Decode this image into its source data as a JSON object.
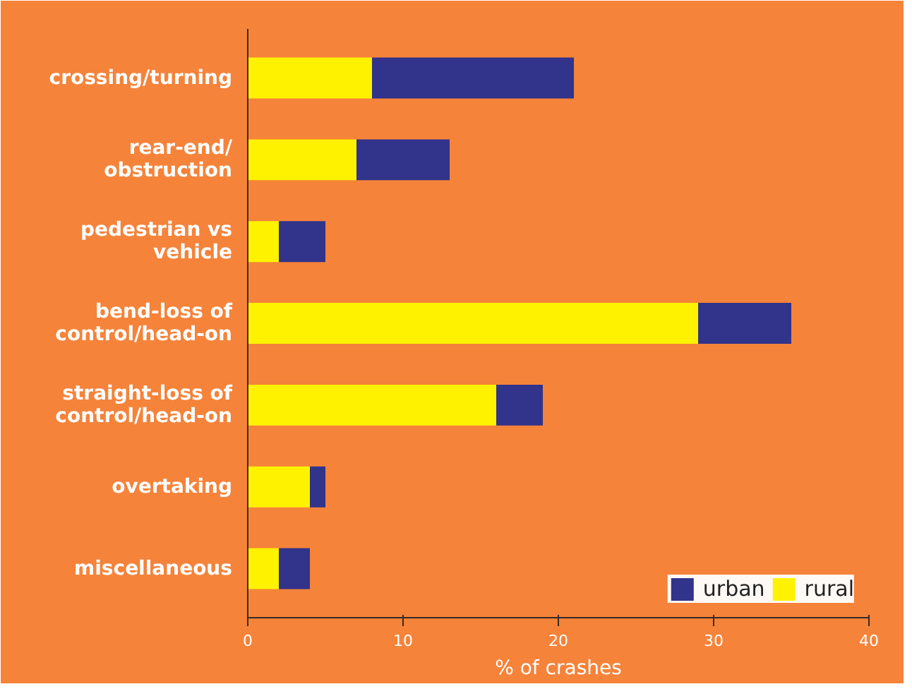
{
  "chart_data": {
    "type": "bar",
    "orientation": "horizontal",
    "stacked": true,
    "xlabel": "% of crashes",
    "categories": [
      "crossing/turning",
      "rear-end/\nobstruction",
      "pedestrian vs\nvehicle",
      "bend-loss of\ncontrol/head-on",
      "straight-loss of\ncontrol/head-on",
      "overtaking",
      "miscellaneous"
    ],
    "series": [
      {
        "name": "rural",
        "color": "#fff200",
        "values": [
          8,
          7,
          2,
          29,
          16,
          4,
          2
        ]
      },
      {
        "name": "urban",
        "color": "#32338a",
        "values": [
          13,
          6,
          3,
          6,
          3,
          1,
          2
        ]
      }
    ],
    "xlim": [
      0,
      40
    ],
    "xticks": [
      0,
      10,
      20,
      30,
      40
    ],
    "grid": false,
    "legend": "bottom right"
  }
}
